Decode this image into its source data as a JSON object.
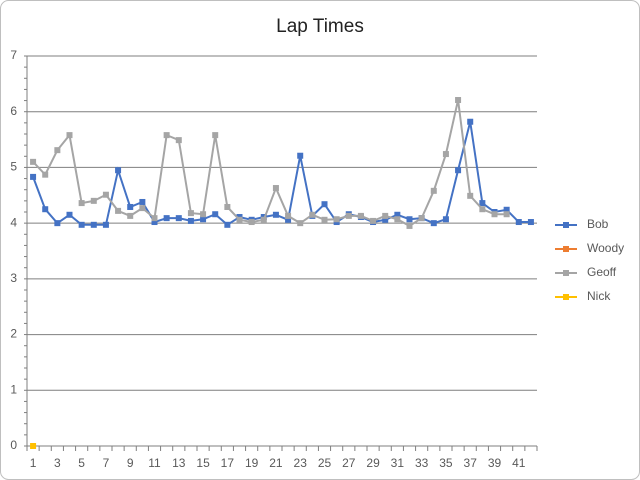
{
  "chart_data": {
    "type": "line",
    "title": "Lap Times",
    "categories": [
      1,
      null,
      3,
      null,
      5,
      null,
      7,
      null,
      9,
      null,
      11,
      null,
      13,
      null,
      15,
      null,
      17,
      null,
      19,
      null,
      21,
      null,
      23,
      null,
      25,
      null,
      27,
      null,
      29,
      null,
      31,
      null,
      33,
      null,
      35,
      null,
      37,
      null,
      39,
      null,
      41,
      null
    ],
    "series": [
      {
        "name": "Bob",
        "color": "#4472c4",
        "values": [
          4.83,
          4.25,
          4.0,
          4.15,
          3.97,
          3.97,
          3.97,
          4.95,
          4.29,
          4.38,
          4.02,
          4.09,
          4.09,
          4.04,
          4.07,
          4.16,
          3.97,
          4.11,
          4.06,
          4.11,
          4.15,
          4.06,
          5.21,
          4.13,
          4.34,
          4.02,
          4.16,
          4.11,
          4.02,
          4.06,
          4.15,
          4.07,
          4.09,
          4.0,
          4.07,
          4.95,
          5.82,
          4.36,
          4.2,
          4.24,
          4.02,
          4.02
        ]
      },
      {
        "name": "Woody",
        "color": "#ed7d31",
        "values": [
          null,
          null,
          null,
          null,
          null,
          null,
          null,
          null,
          null,
          null,
          null,
          null,
          null,
          null,
          null,
          null,
          null,
          null,
          null,
          null,
          null,
          null,
          null,
          null,
          null,
          null,
          null,
          null,
          null,
          null,
          null,
          null,
          null,
          null,
          null,
          null,
          null,
          null,
          null,
          null,
          null,
          null
        ]
      },
      {
        "name": "Geoff",
        "color": "#a5a5a5",
        "values": [
          5.1,
          4.87,
          5.31,
          5.58,
          4.36,
          4.4,
          4.51,
          4.22,
          4.13,
          4.27,
          4.09,
          5.58,
          5.49,
          4.18,
          4.16,
          5.58,
          4.29,
          4.06,
          4.02,
          4.06,
          4.63,
          4.13,
          4.0,
          4.15,
          4.06,
          4.07,
          4.13,
          4.13,
          4.04,
          4.13,
          4.07,
          3.95,
          4.09,
          4.58,
          5.24,
          6.21,
          4.49,
          4.25,
          4.16,
          4.16,
          null,
          null
        ]
      },
      {
        "name": "Nick",
        "color": "#ffc000",
        "values": [
          0,
          null,
          null,
          null,
          null,
          null,
          null,
          null,
          null,
          null,
          null,
          null,
          null,
          null,
          null,
          null,
          null,
          null,
          null,
          null,
          null,
          null,
          null,
          null,
          null,
          null,
          null,
          null,
          null,
          null,
          null,
          null,
          null,
          null,
          null,
          null,
          null,
          null,
          null,
          null,
          null,
          null
        ]
      }
    ],
    "ylim": [
      0,
      7
    ],
    "yticks": [
      0,
      1,
      2,
      3,
      4,
      5,
      6,
      7
    ],
    "grid": true,
    "legend": "right"
  }
}
